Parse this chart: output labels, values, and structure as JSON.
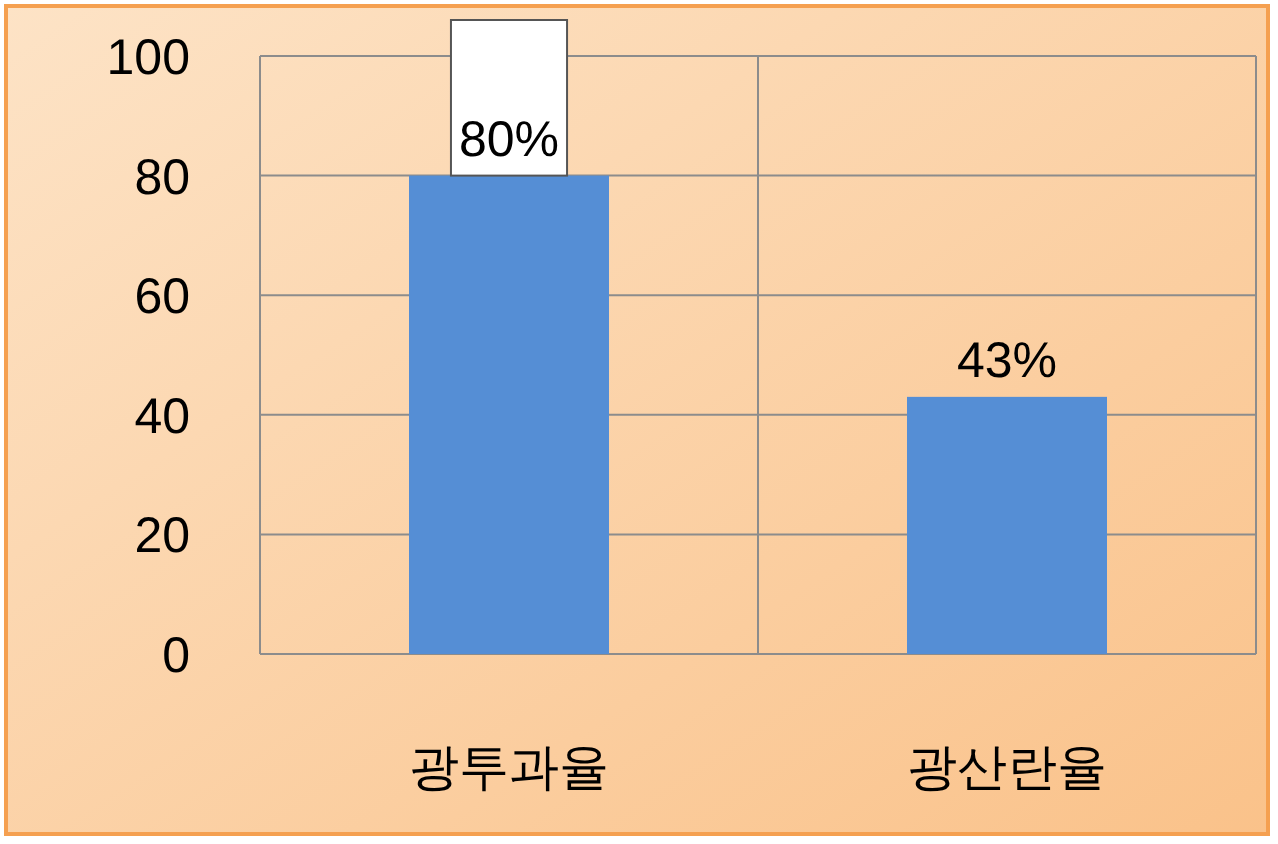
{
  "chart_data": {
    "type": "bar",
    "categories": [
      "광투과율",
      "광산란율"
    ],
    "values": [
      80,
      43
    ],
    "color": "#558ed5",
    "value_labels": [
      "80%",
      "43%"
    ],
    "ylim": [
      0,
      100
    ],
    "yticks": [
      0,
      20,
      40,
      60,
      80,
      100
    ],
    "grid": true
  }
}
